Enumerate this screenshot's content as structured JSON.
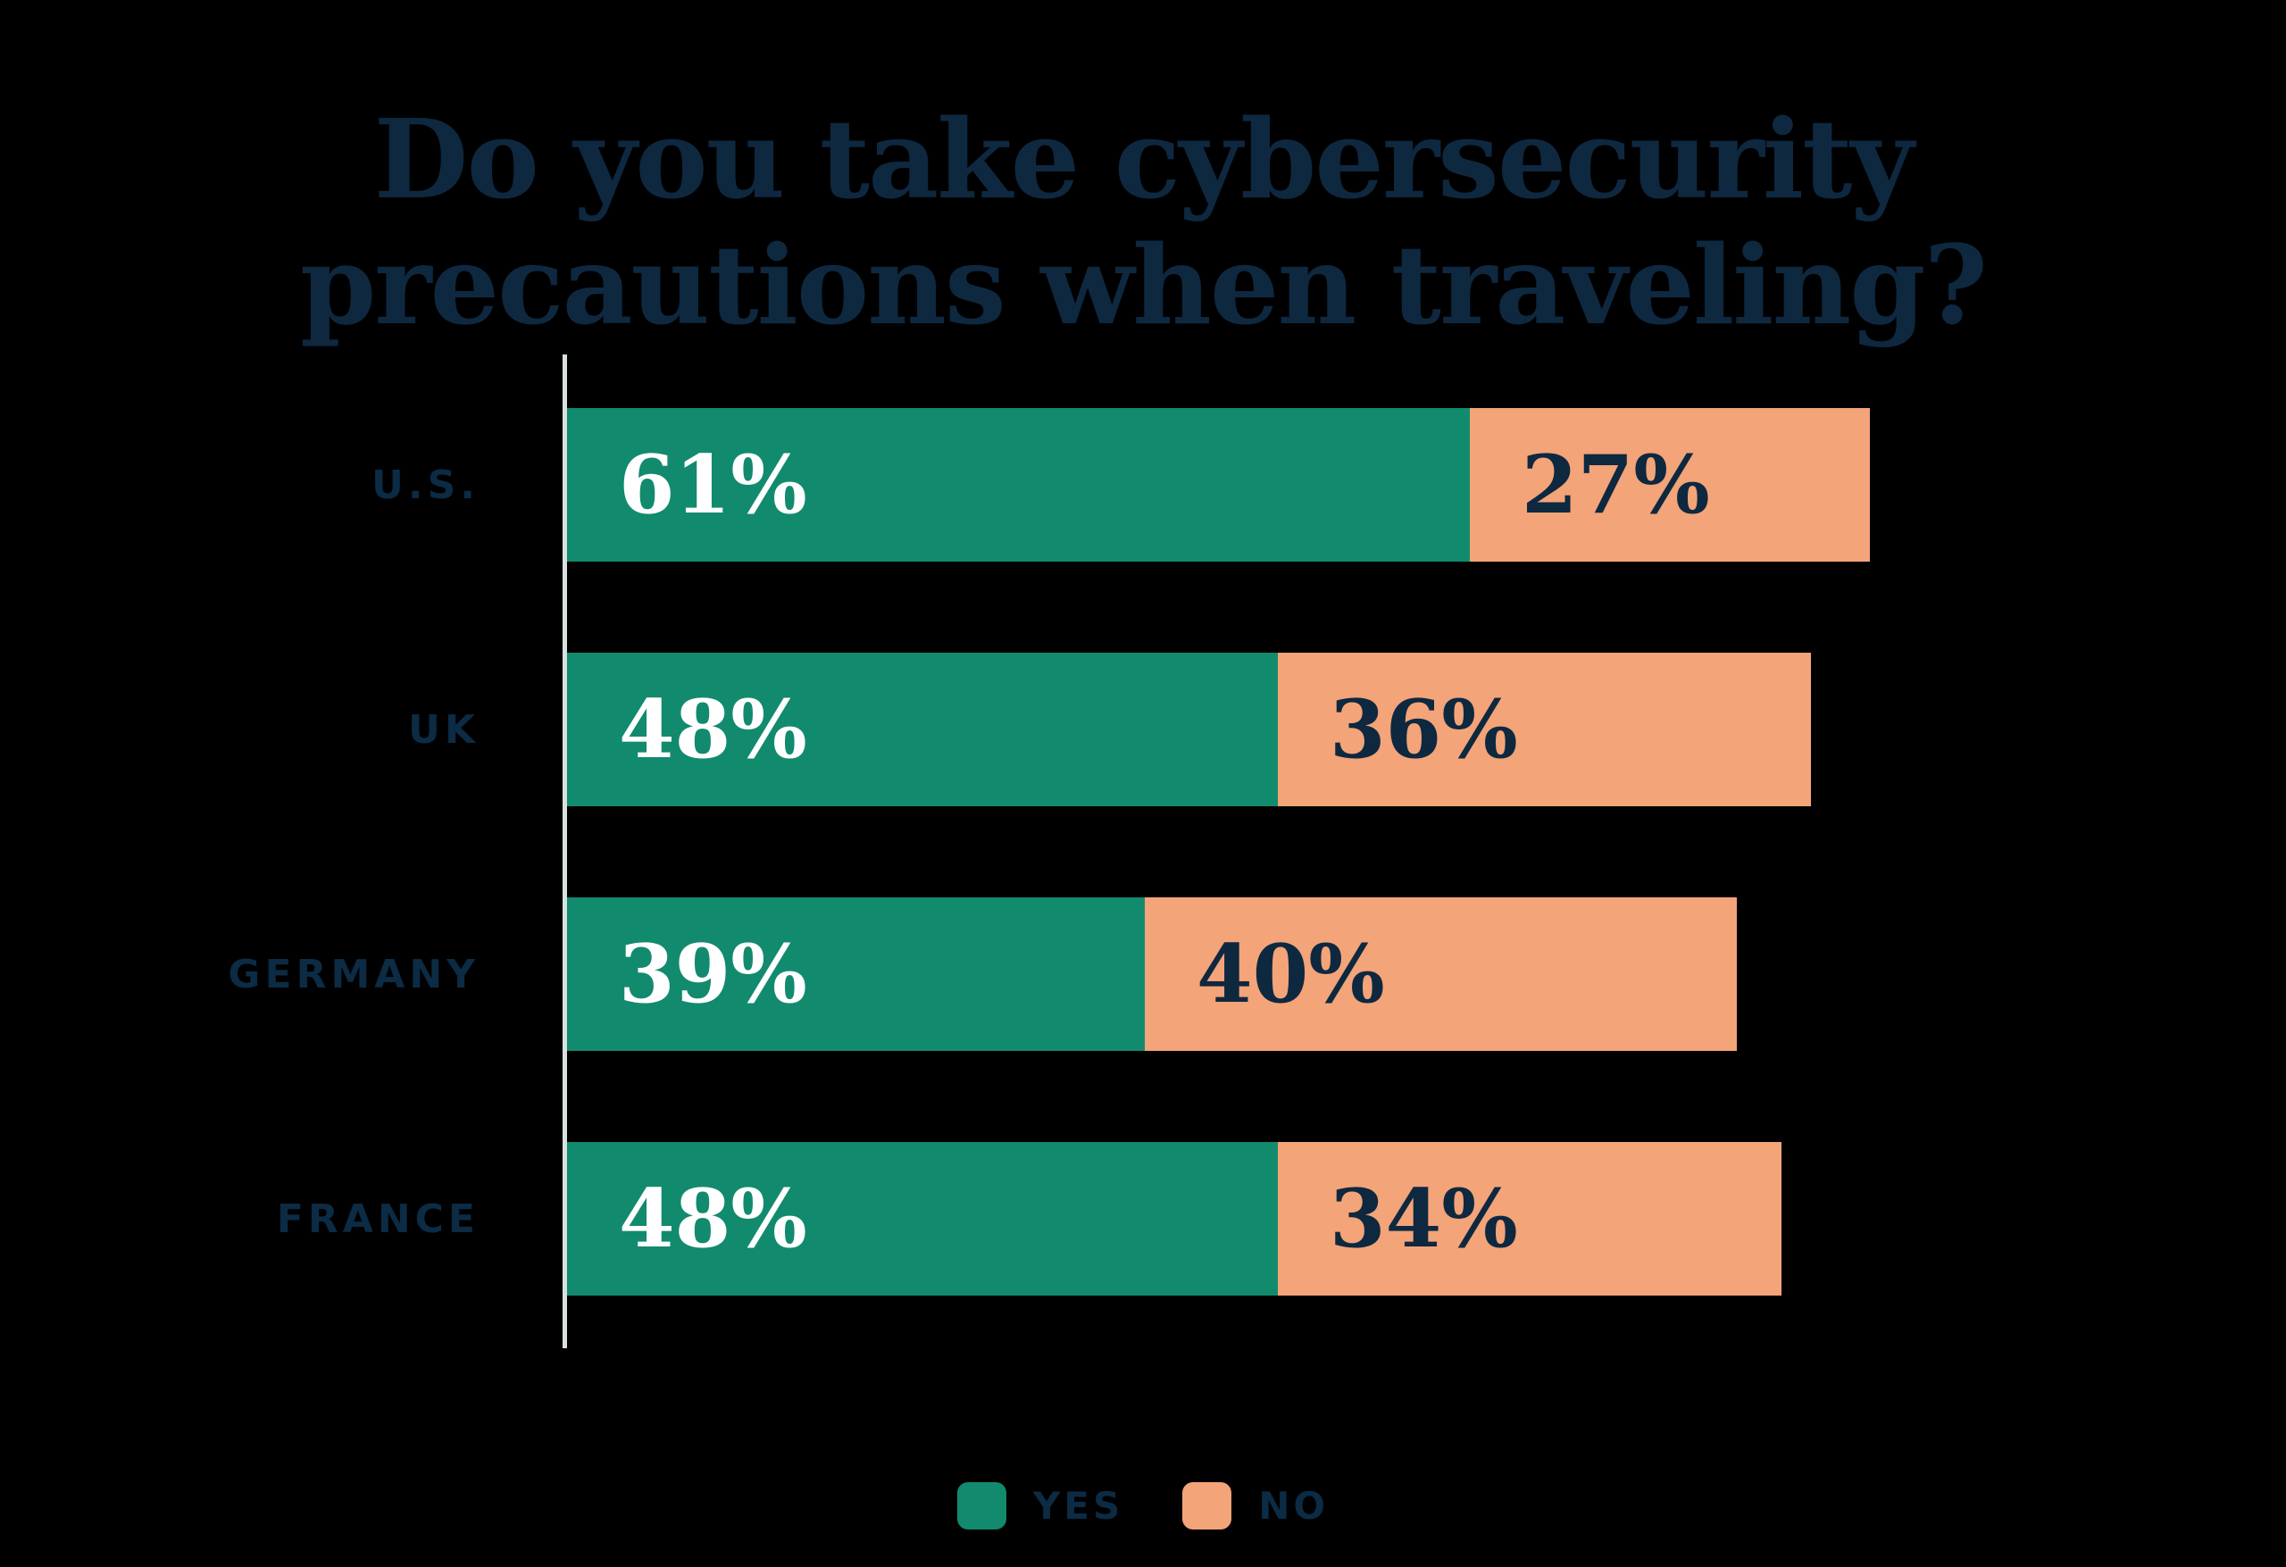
{
  "title": {
    "line1": "Do you take cybersecurity",
    "line2": "precautions when traveling?"
  },
  "chart_data": {
    "type": "bar",
    "orientation": "horizontal",
    "stacked": true,
    "title": "Do you take cybersecurity precautions when traveling?",
    "categories": [
      "U.S.",
      "UK",
      "GERMANY",
      "FRANCE"
    ],
    "series": [
      {
        "name": "YES",
        "color": "#128A6E",
        "label_color": "#FFFFFF",
        "values": [
          61,
          48,
          39,
          48
        ]
      },
      {
        "name": "NO",
        "color": "#F3A478",
        "label_color": "#0E2840",
        "values": [
          27,
          36,
          40,
          34
        ]
      }
    ],
    "value_suffix": "%",
    "xlim": [
      0,
      100
    ],
    "gridlines": false,
    "legend_position": "bottom"
  },
  "colors": {
    "background": "#000000",
    "title": "#0E2840",
    "category_label": "#0C2B44",
    "axis_line": "#D9E0DF",
    "legend_label": "#0C2B44"
  }
}
